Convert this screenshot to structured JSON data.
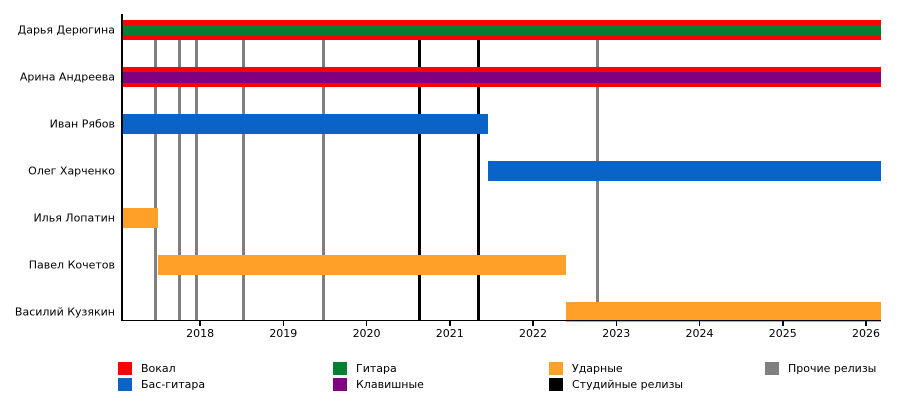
{
  "chart_data": {
    "type": "bar",
    "subtype": "gantt-timeline",
    "title": "",
    "x_axis": {
      "min": 2017.05,
      "max": 2026.18,
      "ticks": [
        2018,
        2019,
        2020,
        2021,
        2022,
        2023,
        2024,
        2025,
        2026
      ],
      "tick_labels": [
        "2018",
        "2019",
        "2020",
        "2021",
        "2022",
        "2023",
        "2024",
        "2025",
        "2026"
      ]
    },
    "members": [
      {
        "name": "Дарья Дерюгина",
        "roles": [
          {
            "instrument": "Вокал",
            "start": 2017.05,
            "end": 2026.18
          },
          {
            "instrument": "Гитара",
            "start": 2017.05,
            "end": 2026.18
          }
        ]
      },
      {
        "name": "Арина Андреева",
        "roles": [
          {
            "instrument": "Вокал",
            "start": 2017.05,
            "end": 2026.18
          },
          {
            "instrument": "Клавишные",
            "start": 2017.05,
            "end": 2026.18
          }
        ]
      },
      {
        "name": "Иван Рябов",
        "roles": [
          {
            "instrument": "Бас-гитара",
            "start": 2017.05,
            "end": 2021.46
          }
        ]
      },
      {
        "name": "Олег Харченко",
        "roles": [
          {
            "instrument": "Бас-гитара",
            "start": 2021.46,
            "end": 2026.18
          }
        ]
      },
      {
        "name": "Илья Лопатин",
        "roles": [
          {
            "instrument": "Ударные",
            "start": 2017.05,
            "end": 2017.5
          }
        ]
      },
      {
        "name": "Павел Кочетов",
        "roles": [
          {
            "instrument": "Ударные",
            "start": 2017.5,
            "end": 2022.39
          }
        ]
      },
      {
        "name": "Василий Кузякин",
        "roles": [
          {
            "instrument": "Ударные",
            "start": 2022.39,
            "end": 2026.18
          }
        ]
      }
    ],
    "releases": {
      "studio": [
        2020.64,
        2021.35
      ],
      "other": [
        2017.46,
        2017.75,
        2017.96,
        2018.52,
        2019.48,
        2022.78
      ]
    },
    "colors": {
      "Вокал": "#ff0000",
      "Бас-гитара": "#0a64c8",
      "Гитара": "#008030",
      "Клавишные": "#800080",
      "Ударные": "#ffa028",
      "Студийные релизы": "#000000",
      "Прочие релизы": "#808080"
    },
    "legend": {
      "position": "bottom",
      "columns": [
        [
          {
            "label": "Вокал",
            "color": "#ff0000"
          },
          {
            "label": "Бас-гитара",
            "color": "#0a64c8"
          }
        ],
        [
          {
            "label": "Гитара",
            "color": "#008030"
          },
          {
            "label": "Клавишные",
            "color": "#800080"
          }
        ],
        [
          {
            "label": "Ударные",
            "color": "#ffa028"
          },
          {
            "label": "Студийные релизы",
            "color": "#000000"
          }
        ],
        [
          {
            "label": "Прочие релизы",
            "color": "#808080"
          }
        ]
      ]
    },
    "grid": false
  }
}
